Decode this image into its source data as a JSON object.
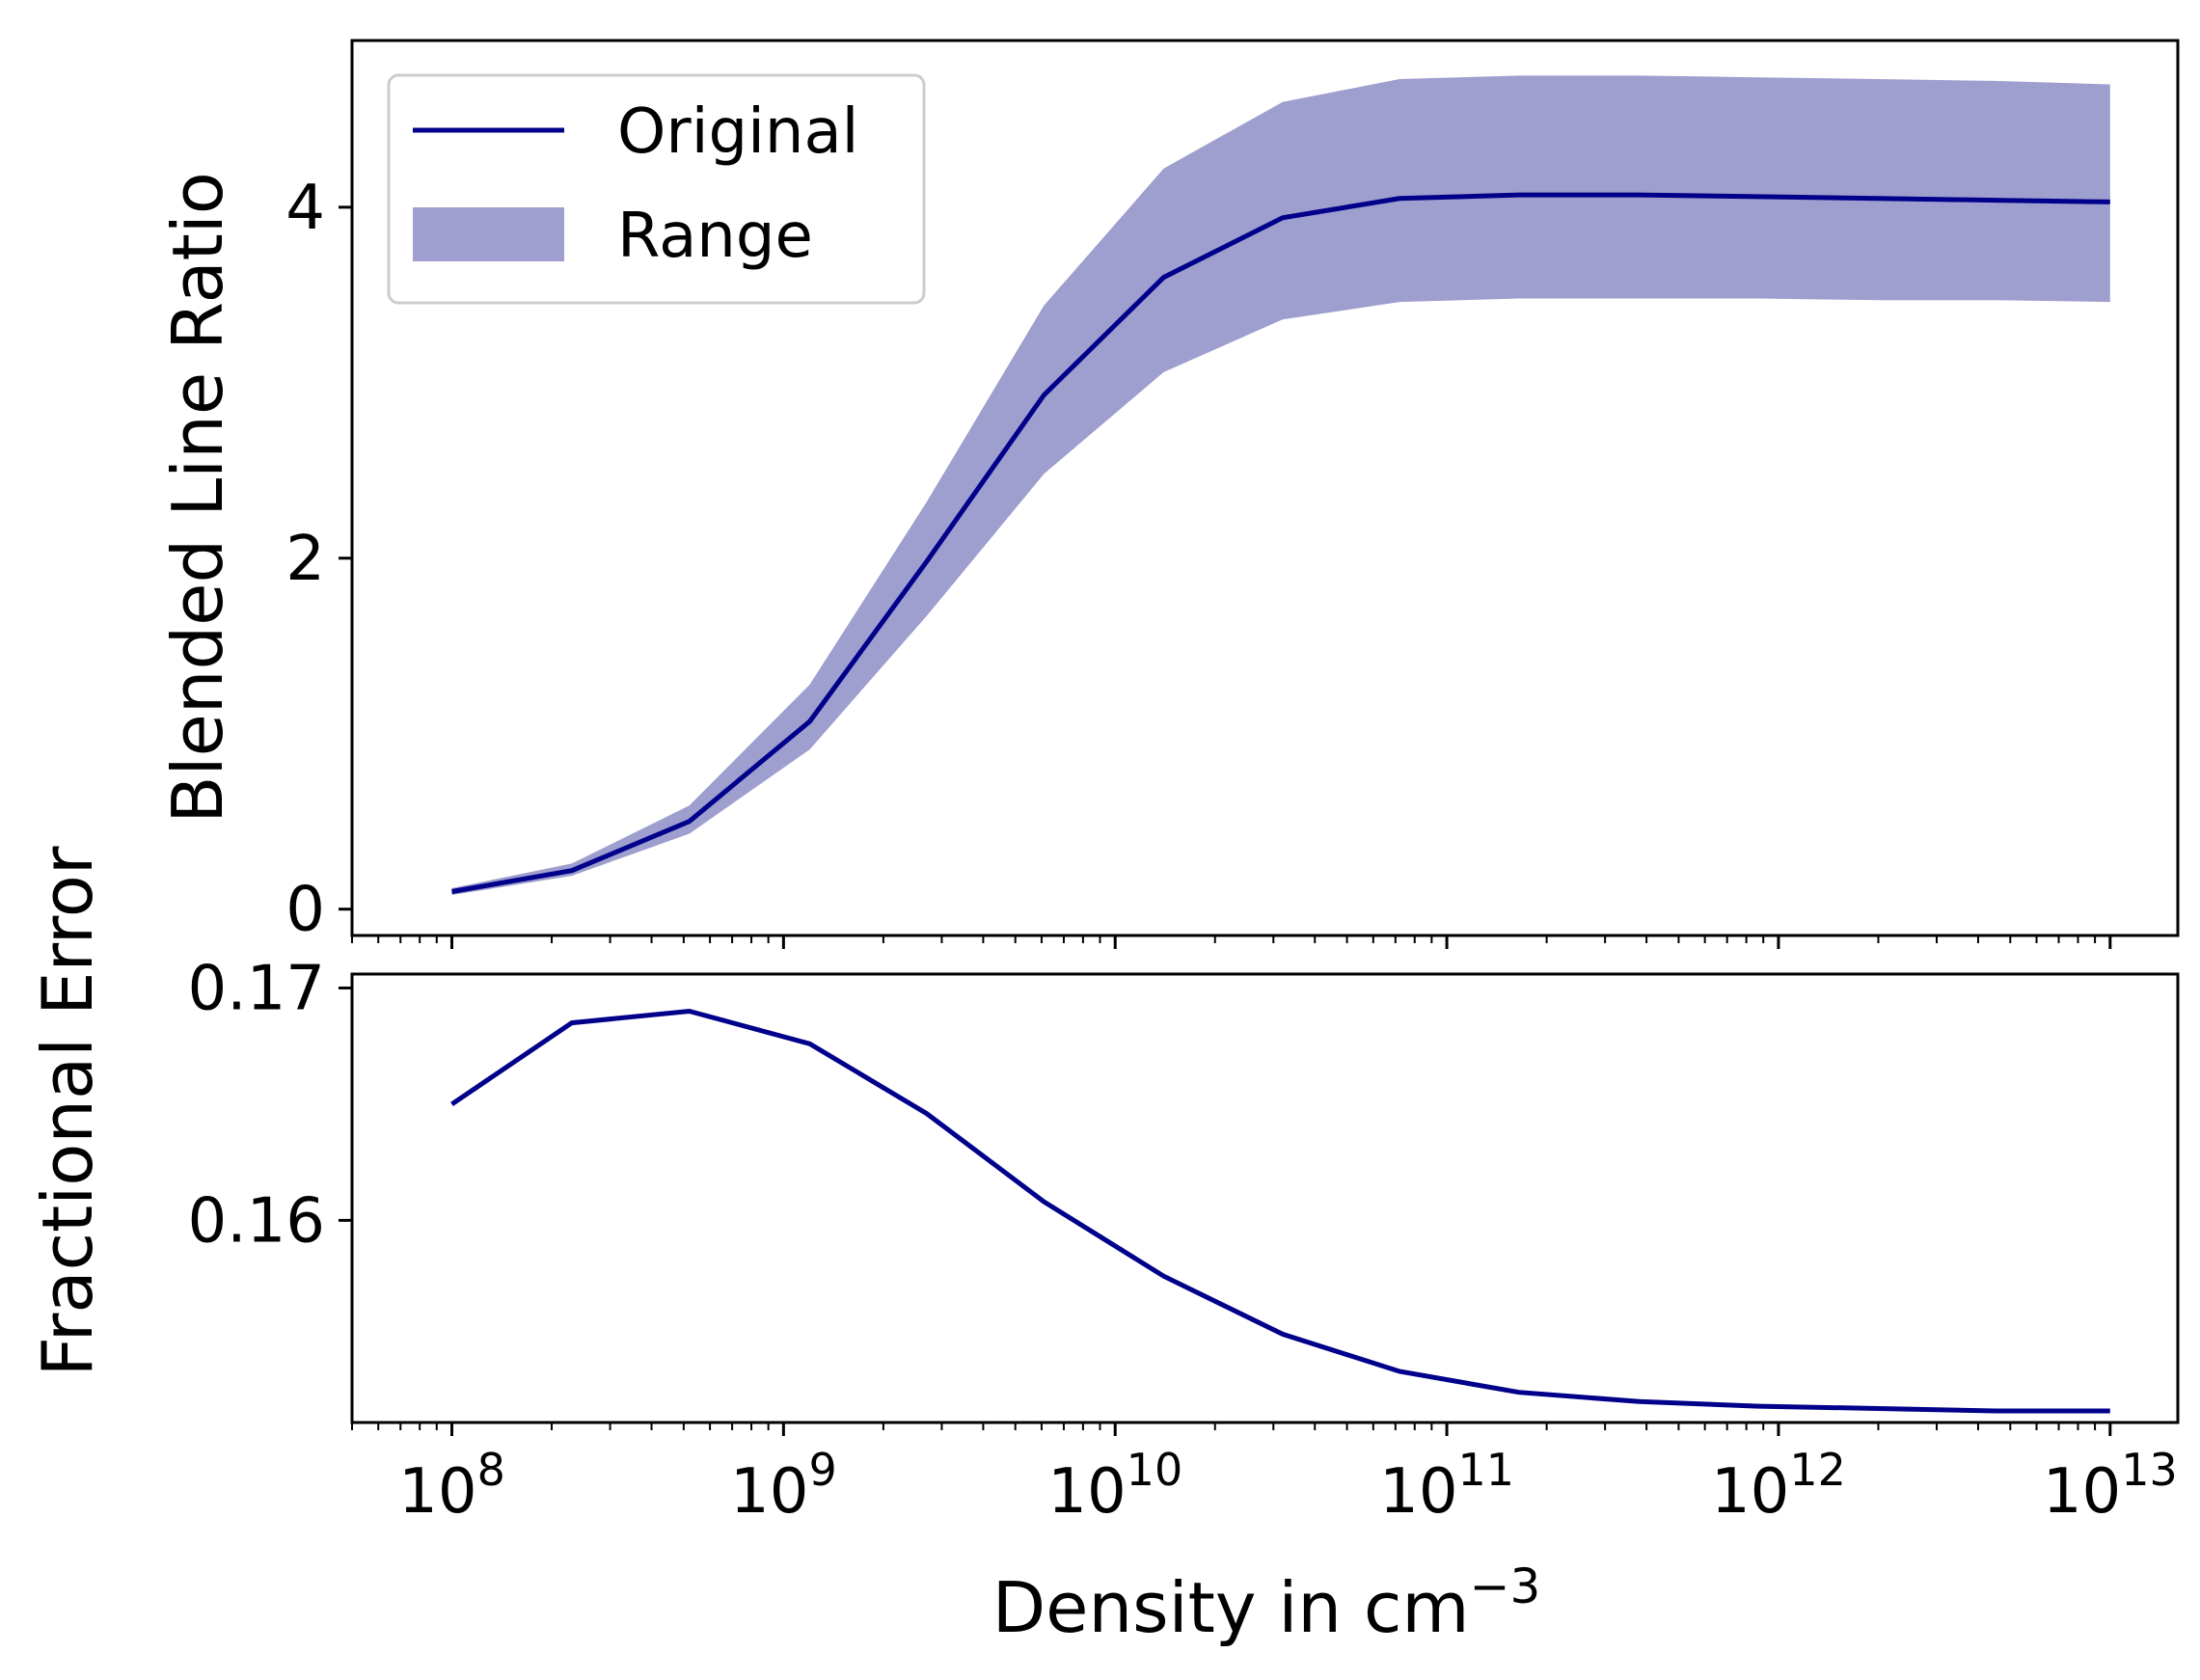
{
  "colors": {
    "line": "#00008b",
    "band": "#9e9ecf",
    "axis": "#000000",
    "legend_border": "#cccccc"
  },
  "chart_data": [
    {
      "type": "line",
      "panel": "top",
      "ylabel": "Blended Line Ratio",
      "xscale": "log",
      "xlim": [
        50000000.0,
        16000000000000.0
      ],
      "ylim": [
        -0.15,
        4.95
      ],
      "yticks": [
        0,
        2,
        4
      ],
      "ytick_labels": [
        "0",
        "2",
        "4"
      ],
      "legend_position": "top-left",
      "x": [
        100000000.0,
        230000000.0,
        520000000.0,
        1200000000.0,
        2700000000.0,
        6100000000.0,
        14000000000.0,
        32000000000.0,
        72000000000.0,
        165000000000.0,
        380000000000.0,
        870000000000.0,
        2000000000000.0,
        4500000000000.0,
        10000000000000.0
      ],
      "series": [
        {
          "name": "Original",
          "kind": "line",
          "values": [
            0.1,
            0.22,
            0.5,
            1.07,
            1.98,
            2.93,
            3.6,
            3.94,
            4.05,
            4.07,
            4.07,
            4.06,
            4.05,
            4.04,
            4.03
          ]
        },
        {
          "name": "Range",
          "kind": "band",
          "lower": [
            0.08,
            0.19,
            0.43,
            0.91,
            1.67,
            2.48,
            3.06,
            3.36,
            3.46,
            3.48,
            3.48,
            3.48,
            3.47,
            3.47,
            3.46
          ],
          "upper": [
            0.12,
            0.26,
            0.59,
            1.28,
            2.32,
            3.44,
            4.22,
            4.6,
            4.73,
            4.75,
            4.75,
            4.74,
            4.73,
            4.72,
            4.7
          ]
        }
      ],
      "legend": [
        "Original",
        "Range"
      ]
    },
    {
      "type": "line",
      "panel": "bottom",
      "ylabel": "Fractional Error",
      "xlabel_main": "Density in cm",
      "xlabel_sup": "−3",
      "xscale": "log",
      "xlim": [
        50000000.0,
        16000000000000.0
      ],
      "ylim": [
        0.1513,
        0.1706
      ],
      "yticks": [
        0.16,
        0.17
      ],
      "ytick_labels": [
        "0.16",
        "0.17"
      ],
      "xtick_bases": [
        "10",
        "10",
        "10",
        "10",
        "10",
        "10"
      ],
      "xtick_exponents": [
        "8",
        "9",
        "10",
        "11",
        "12",
        "13"
      ],
      "xtick_values": [
        100000000.0,
        1000000000.0,
        10000000000.0,
        100000000000.0,
        1000000000000.0,
        10000000000000.0
      ],
      "x": [
        100000000.0,
        230000000.0,
        520000000.0,
        1200000000.0,
        2700000000.0,
        6100000000.0,
        14000000000.0,
        32000000000.0,
        72000000000.0,
        165000000000.0,
        380000000000.0,
        870000000000.0,
        2000000000000.0,
        4500000000000.0,
        10000000000000.0
      ],
      "series": [
        {
          "name": "Fractional Error",
          "values": [
            0.165,
            0.1685,
            0.169,
            0.1676,
            0.1646,
            0.1608,
            0.1576,
            0.1551,
            0.1535,
            0.1526,
            0.1522,
            0.152,
            0.1519,
            0.1518,
            0.1518
          ]
        }
      ]
    }
  ]
}
